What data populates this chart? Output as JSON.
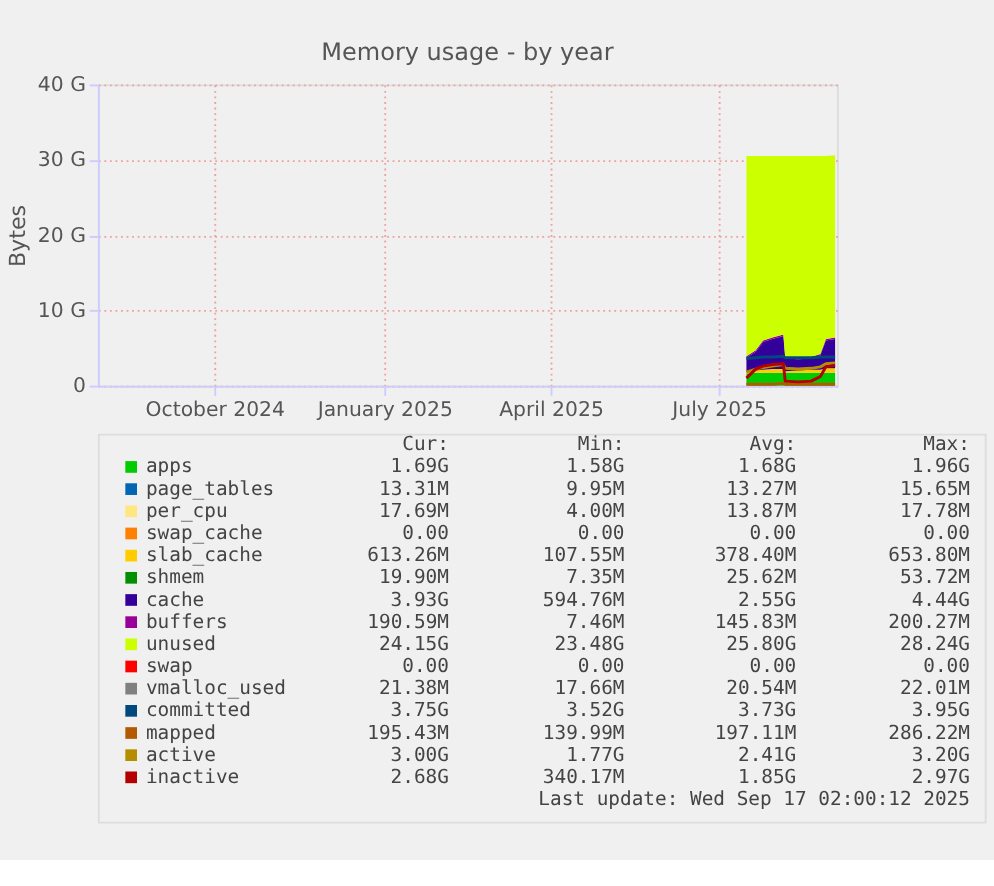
{
  "chart_data": {
    "type": "area",
    "title": "Memory usage - by year",
    "ylabel": "Bytes",
    "stacked": true,
    "legend": "bottom",
    "grid": true,
    "line_style": "solid",
    "xlim": [
      "2024-08-13",
      "2025-09-17"
    ],
    "xticks": [
      {
        "value": "2024-10-15",
        "label": "October 2024"
      },
      {
        "value": "2025-01-15",
        "label": "January 2025"
      },
      {
        "value": "2025-04-15",
        "label": "April 2025"
      },
      {
        "value": "2025-07-15",
        "label": "July 2025"
      }
    ],
    "ylim": [
      0,
      40
    ],
    "yticks": [
      {
        "value": 0,
        "label": "0"
      },
      {
        "value": 10,
        "label": "10 G"
      },
      {
        "value": 20,
        "label": "20 G"
      },
      {
        "value": 30,
        "label": "30 G"
      },
      {
        "value": 40,
        "label": "40 G"
      }
    ],
    "x": [
      "2025-07-30",
      "2025-08-04",
      "2025-08-08",
      "2025-08-13",
      "2025-08-19",
      "2025-08-20",
      "2025-08-27",
      "2025-09-03",
      "2025-09-08",
      "2025-09-11",
      "2025-09-16"
    ],
    "series": [
      {
        "name": "apps",
        "color": "#00cc00",
        "values": [
          1.6,
          1.7,
          1.7,
          1.7,
          1.7,
          1.7,
          1.7,
          1.7,
          1.7,
          1.7,
          1.7
        ]
      },
      {
        "name": "page_tables",
        "color": "#0066b3",
        "values": [
          null,
          null,
          null,
          null,
          null,
          null,
          null,
          null,
          null,
          null,
          null
        ]
      },
      {
        "name": "per_cpu",
        "color": "#ffe680",
        "values": [
          null,
          null,
          null,
          null,
          null,
          null,
          null,
          null,
          null,
          null,
          null
        ]
      },
      {
        "name": "swap_cache",
        "color": "#ff8000",
        "values": [
          null,
          null,
          null,
          null,
          null,
          null,
          null,
          null,
          null,
          null,
          null
        ]
      },
      {
        "name": "slab_cache",
        "color": "#ffcc00",
        "values": [
          0.2,
          0.3,
          0.4,
          0.5,
          0.5,
          0.2,
          0.3,
          0.4,
          0.4,
          0.6,
          0.6
        ]
      },
      {
        "name": "shmem",
        "color": "#008f00",
        "values": [
          null,
          null,
          null,
          null,
          null,
          null,
          null,
          null,
          null,
          null,
          null
        ]
      },
      {
        "name": "cache",
        "color": "#330099",
        "values": [
          1.9,
          2.5,
          3.7,
          4.0,
          4.4,
          1.7,
          1.5,
          1.5,
          1.9,
          3.7,
          3.9
        ]
      },
      {
        "name": "buffers",
        "color": "#990099",
        "values": [
          0.2,
          0.2,
          0.2,
          0.2,
          0.2,
          0.2,
          0.2,
          0.2,
          0.2,
          0.2,
          0.2
        ]
      },
      {
        "name": "unused",
        "color": "#ccff00",
        "values": [
          26.6,
          25.8,
          24.5,
          24.1,
          23.7,
          26.7,
          26.8,
          26.7,
          26.3,
          24.3,
          24.2
        ]
      },
      {
        "name": "swap",
        "color": "#ff0000",
        "values": [
          null,
          null,
          null,
          null,
          null,
          null,
          null,
          null,
          null,
          null,
          null
        ]
      },
      {
        "name": "vmalloc_used",
        "color": "#808080",
        "type": "line",
        "values": [
          null,
          null,
          null,
          null,
          null,
          null,
          null,
          null,
          null,
          null,
          null
        ]
      },
      {
        "name": "committed",
        "color": "#00487d",
        "type": "line",
        "values": [
          3.6,
          3.7,
          3.8,
          3.8,
          3.9,
          3.7,
          3.7,
          3.7,
          3.8,
          3.8,
          3.8
        ]
      },
      {
        "name": "mapped",
        "color": "#b35a00",
        "type": "line",
        "values": [
          0.2,
          0.2,
          0.2,
          0.2,
          0.3,
          0.2,
          0.2,
          0.2,
          0.2,
          0.2,
          0.2
        ]
      },
      {
        "name": "active",
        "color": "#b38f00",
        "type": "line",
        "values": [
          1.8,
          2.2,
          2.4,
          2.6,
          2.8,
          2.3,
          2.2,
          2.3,
          2.5,
          2.9,
          3.0
        ]
      },
      {
        "name": "inactive",
        "color": "#b30000",
        "type": "line",
        "values": [
          1.0,
          2.2,
          2.6,
          2.8,
          2.9,
          0.6,
          0.5,
          0.6,
          1.2,
          2.5,
          2.7
        ]
      }
    ],
    "annotations": [
      "Cur:",
      "Min:",
      "Avg:",
      "Max:",
      "1.69G",
      "1.58G",
      "1.68G",
      "1.96G",
      "13.31M",
      "9.95M",
      "13.27M",
      "15.65M",
      "17.69M",
      "4.00M",
      "13.87M",
      "17.78M",
      "0.00",
      "0.00",
      "0.00",
      "0.00",
      "613.26M",
      "107.55M",
      "378.40M",
      "653.80M",
      "19.90M",
      "7.35M",
      "25.62M",
      "53.72M",
      "3.93G",
      "594.76M",
      "2.55G",
      "4.44G",
      "190.59M",
      "7.46M",
      "145.83M",
      "200.27M",
      "24.15G",
      "23.48G",
      "25.80G",
      "28.24G",
      "0.00",
      "0.00",
      "0.00",
      "0.00",
      "21.38M",
      "17.66M",
      "20.54M",
      "22.01M",
      "3.75G",
      "3.52G",
      "3.73G",
      "3.95G",
      "195.43M",
      "139.99M",
      "197.11M",
      "286.22M",
      "3.00G",
      "1.77G",
      "2.41G",
      "3.20G",
      "2.68G",
      "340.17M",
      "1.85G",
      "2.97G",
      "Last update: Wed Sep 17 02:00:12 2025"
    ]
  }
}
